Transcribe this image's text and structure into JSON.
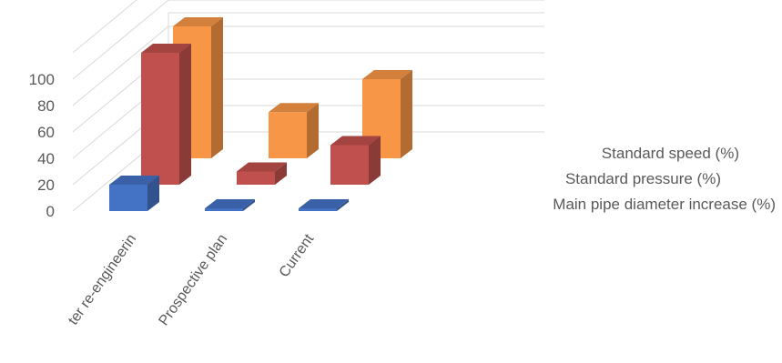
{
  "chart_data": {
    "type": "bar",
    "subtype": "3d-column",
    "categories": [
      "After re-engineering",
      "Prospective plan",
      "Current"
    ],
    "category_labels_visible": [
      "ter re-engineerin",
      "Prospective plan",
      "Current"
    ],
    "y_ticks": [
      "0",
      "20",
      "40",
      "60",
      "80",
      "100"
    ],
    "ylim": [
      0,
      100
    ],
    "grid": true,
    "series": [
      {
        "name": "Main pipe diameter increase (%)",
        "values": [
          20,
          0,
          0
        ],
        "color": "#4472C4"
      },
      {
        "name": "Standard pressure (%)",
        "values": [
          100,
          10,
          30
        ],
        "color": "#C0504D"
      },
      {
        "name": "Standard speed (%)",
        "values": [
          100,
          35,
          60
        ],
        "color": "#F79646"
      }
    ]
  }
}
